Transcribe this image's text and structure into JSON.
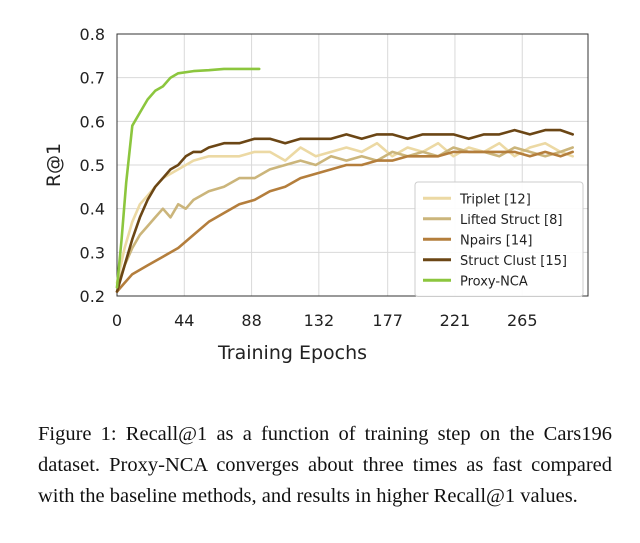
{
  "chart_data": {
    "type": "line",
    "title": "",
    "xlabel": "Training Epochs",
    "ylabel": "R@1",
    "xlim": [
      0,
      308
    ],
    "ylim": [
      0.2,
      0.8
    ],
    "xticks": [
      0,
      44,
      88,
      132,
      177,
      221,
      265
    ],
    "yticks": [
      0.2,
      0.3,
      0.4,
      0.5,
      0.6,
      0.7,
      0.8
    ],
    "xtick_labels": [
      "0",
      "44",
      "88",
      "132",
      "177",
      "221",
      "265"
    ],
    "ytick_labels": [
      "0.2",
      "0.3",
      "0.4",
      "0.5",
      "0.6",
      "0.7",
      "0.8"
    ],
    "grid": true,
    "legend_position": "lower-right",
    "series": [
      {
        "name": "Triplet [12]",
        "color": "#ecd9a4",
        "x": [
          0,
          5,
          10,
          15,
          20,
          25,
          30,
          40,
          50,
          60,
          70,
          80,
          90,
          100,
          110,
          120,
          130,
          140,
          150,
          160,
          170,
          180,
          190,
          200,
          210,
          220,
          230,
          240,
          250,
          260,
          270,
          280,
          290,
          298
        ],
        "y": [
          0.23,
          0.31,
          0.37,
          0.41,
          0.43,
          0.45,
          0.47,
          0.49,
          0.51,
          0.52,
          0.52,
          0.52,
          0.53,
          0.53,
          0.51,
          0.54,
          0.52,
          0.53,
          0.54,
          0.53,
          0.55,
          0.52,
          0.54,
          0.53,
          0.55,
          0.52,
          0.54,
          0.53,
          0.55,
          0.52,
          0.54,
          0.55,
          0.53,
          0.52
        ]
      },
      {
        "name": "Lifted Struct [8]",
        "color": "#cbb57b",
        "x": [
          0,
          5,
          10,
          15,
          20,
          25,
          30,
          35,
          40,
          45,
          50,
          55,
          60,
          70,
          80,
          90,
          100,
          110,
          120,
          130,
          140,
          150,
          160,
          170,
          180,
          190,
          200,
          210,
          220,
          230,
          240,
          250,
          260,
          270,
          280,
          290,
          298
        ],
        "y": [
          0.22,
          0.27,
          0.31,
          0.34,
          0.36,
          0.38,
          0.4,
          0.38,
          0.41,
          0.4,
          0.42,
          0.43,
          0.44,
          0.45,
          0.47,
          0.47,
          0.49,
          0.5,
          0.51,
          0.5,
          0.52,
          0.51,
          0.52,
          0.51,
          0.53,
          0.52,
          0.53,
          0.52,
          0.54,
          0.53,
          0.53,
          0.52,
          0.54,
          0.53,
          0.52,
          0.53,
          0.54
        ]
      },
      {
        "name": "Npairs [14]",
        "color": "#b47e3c",
        "x": [
          0,
          5,
          10,
          20,
          30,
          40,
          50,
          60,
          70,
          80,
          90,
          100,
          110,
          120,
          130,
          140,
          150,
          160,
          170,
          180,
          190,
          200,
          210,
          220,
          230,
          240,
          250,
          260,
          270,
          280,
          290,
          298
        ],
        "y": [
          0.21,
          0.23,
          0.25,
          0.27,
          0.29,
          0.31,
          0.34,
          0.37,
          0.39,
          0.41,
          0.42,
          0.44,
          0.45,
          0.47,
          0.48,
          0.49,
          0.5,
          0.5,
          0.51,
          0.51,
          0.52,
          0.52,
          0.52,
          0.53,
          0.53,
          0.53,
          0.53,
          0.53,
          0.52,
          0.53,
          0.52,
          0.53
        ]
      },
      {
        "name": "Struct Clust [15]",
        "color": "#6b4615",
        "x": [
          0,
          5,
          10,
          15,
          20,
          25,
          30,
          35,
          40,
          45,
          50,
          55,
          60,
          70,
          80,
          90,
          100,
          110,
          120,
          130,
          140,
          150,
          160,
          170,
          180,
          190,
          200,
          210,
          220,
          230,
          240,
          250,
          260,
          270,
          280,
          290,
          298
        ],
        "y": [
          0.21,
          0.27,
          0.33,
          0.38,
          0.42,
          0.45,
          0.47,
          0.49,
          0.5,
          0.52,
          0.53,
          0.53,
          0.54,
          0.55,
          0.55,
          0.56,
          0.56,
          0.55,
          0.56,
          0.56,
          0.56,
          0.57,
          0.56,
          0.57,
          0.57,
          0.56,
          0.57,
          0.57,
          0.57,
          0.56,
          0.57,
          0.57,
          0.58,
          0.57,
          0.58,
          0.58,
          0.57
        ]
      },
      {
        "name": "Proxy-NCA",
        "color": "#8cc63e",
        "x": [
          0,
          3,
          6,
          10,
          15,
          20,
          25,
          30,
          35,
          40,
          50,
          60,
          70,
          80,
          90,
          93
        ],
        "y": [
          0.22,
          0.33,
          0.46,
          0.59,
          0.62,
          0.65,
          0.67,
          0.68,
          0.7,
          0.71,
          0.715,
          0.717,
          0.72,
          0.72,
          0.72,
          0.72
        ]
      }
    ]
  },
  "caption": {
    "text": "Figure 1: Recall@1 as a function of training step on the Cars196 dataset. Proxy-NCA converges about three times as fast compared with the baseline methods, and results in higher Recall@1 values."
  }
}
